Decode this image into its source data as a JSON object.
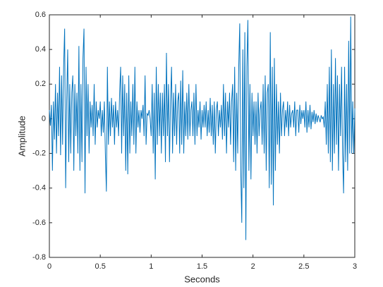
{
  "chart_data": {
    "type": "line",
    "xlabel": "Seconds",
    "ylabel": "Amplitude",
    "xlim": [
      0,
      3
    ],
    "ylim": [
      -0.8,
      0.6
    ],
    "xticks": [
      0,
      0.5,
      1,
      1.5,
      2,
      2.5,
      3
    ],
    "yticks": [
      -0.8,
      -0.6,
      -0.4,
      -0.2,
      0,
      0.2,
      0.4,
      0.6
    ],
    "grid": false,
    "x": [
      0,
      0.01,
      0.02,
      0.03,
      0.04,
      0.05,
      0.06,
      0.07,
      0.08,
      0.09,
      0.1,
      0.11,
      0.12,
      0.13,
      0.14,
      0.15,
      0.16,
      0.17,
      0.18,
      0.19,
      0.2,
      0.21,
      0.22,
      0.23,
      0.24,
      0.25,
      0.26,
      0.27,
      0.28,
      0.29,
      0.3,
      0.31,
      0.32,
      0.33,
      0.34,
      0.35,
      0.36,
      0.37,
      0.38,
      0.39,
      0.4,
      0.41,
      0.42,
      0.43,
      0.44,
      0.45,
      0.46,
      0.47,
      0.48,
      0.49,
      0.5,
      0.51,
      0.52,
      0.53,
      0.54,
      0.55,
      0.56,
      0.57,
      0.58,
      0.59,
      0.6,
      0.61,
      0.62,
      0.63,
      0.64,
      0.65,
      0.66,
      0.67,
      0.68,
      0.69,
      0.7,
      0.71,
      0.72,
      0.73,
      0.74,
      0.75,
      0.76,
      0.77,
      0.78,
      0.79,
      0.8,
      0.81,
      0.82,
      0.83,
      0.84,
      0.85,
      0.86,
      0.87,
      0.88,
      0.89,
      0.9,
      0.91,
      0.92,
      0.93,
      0.94,
      0.95,
      0.96,
      0.97,
      0.98,
      0.99,
      1,
      1.01,
      1.02,
      1.03,
      1.04,
      1.05,
      1.06,
      1.07,
      1.08,
      1.09,
      1.1,
      1.11,
      1.12,
      1.13,
      1.14,
      1.15,
      1.16,
      1.17,
      1.18,
      1.19,
      1.2,
      1.21,
      1.22,
      1.23,
      1.24,
      1.25,
      1.26,
      1.27,
      1.28,
      1.29,
      1.3,
      1.31,
      1.32,
      1.33,
      1.34,
      1.35,
      1.36,
      1.37,
      1.38,
      1.39,
      1.4,
      1.41,
      1.42,
      1.43,
      1.44,
      1.45,
      1.46,
      1.47,
      1.48,
      1.49,
      1.5,
      1.51,
      1.52,
      1.53,
      1.54,
      1.55,
      1.56,
      1.57,
      1.58,
      1.59,
      1.6,
      1.61,
      1.62,
      1.63,
      1.64,
      1.65,
      1.66,
      1.67,
      1.68,
      1.69,
      1.7,
      1.71,
      1.72,
      1.73,
      1.74,
      1.75,
      1.76,
      1.77,
      1.78,
      1.79,
      1.8,
      1.81,
      1.82,
      1.83,
      1.84,
      1.85,
      1.86,
      1.87,
      1.88,
      1.89,
      1.9,
      1.91,
      1.92,
      1.93,
      1.94,
      1.95,
      1.96,
      1.97,
      1.98,
      1.99,
      2,
      2.01,
      2.02,
      2.03,
      2.04,
      2.05,
      2.06,
      2.07,
      2.08,
      2.09,
      2.1,
      2.11,
      2.12,
      2.13,
      2.14,
      2.15,
      2.16,
      2.17,
      2.18,
      2.19,
      2.2,
      2.21,
      2.22,
      2.23,
      2.24,
      2.25,
      2.26,
      2.27,
      2.28,
      2.29,
      2.3,
      2.31,
      2.32,
      2.33,
      2.34,
      2.35,
      2.36,
      2.37,
      2.38,
      2.39,
      2.4,
      2.41,
      2.42,
      2.43,
      2.44,
      2.45,
      2.46,
      2.47,
      2.48,
      2.49,
      2.5,
      2.51,
      2.52,
      2.53,
      2.54,
      2.55,
      2.56,
      2.57,
      2.58,
      2.59,
      2.6,
      2.61,
      2.62,
      2.63,
      2.64,
      2.65,
      2.66,
      2.67,
      2.68,
      2.69,
      2.7,
      2.71,
      2.72,
      2.73,
      2.74,
      2.75,
      2.76,
      2.77,
      2.78,
      2.79,
      2.8,
      2.81,
      2.82,
      2.83,
      2.84,
      2.85,
      2.86,
      2.87,
      2.88,
      2.89,
      2.9,
      2.91,
      2.92,
      2.93,
      2.94,
      2.95,
      2.96,
      2.97,
      2.98,
      2.99,
      3
    ],
    "series": [
      {
        "color": "#0072bd",
        "values": [
          0.05,
          -0.04,
          0.08,
          -0.3,
          0.1,
          -0.12,
          0.2,
          -0.2,
          0.15,
          -0.1,
          0.3,
          -0.21,
          0.25,
          -0.15,
          0.3,
          0.52,
          -0.4,
          0.1,
          0.4,
          -0.25,
          0.2,
          -0.2,
          0.15,
          0.25,
          -0.3,
          0.2,
          -0.1,
          0.15,
          -0.2,
          0.42,
          -0.3,
          0.2,
          -0.25,
          0.35,
          0.52,
          -0.43,
          0.3,
          -0.1,
          0.2,
          -0.2,
          0.1,
          -0.05,
          0.08,
          -0.1,
          0.2,
          -0.15,
          0.1,
          -0.05,
          0.05,
          0,
          0.1,
          -0.1,
          0.05,
          -0.08,
          0.1,
          -0.2,
          -0.42,
          0.3,
          -0.15,
          0.1,
          -0.1,
          0.12,
          -0.05,
          0.08,
          -0.15,
          0.1,
          -0.05,
          0.05,
          -0.1,
          0.15,
          0.3,
          -0.2,
          0.25,
          -0.1,
          0.2,
          -0.3,
          0.15,
          -0.32,
          0.25,
          -0.2,
          0.1,
          -0.1,
          0.2,
          -0.15,
          0.3,
          -0.2,
          0.1,
          -0.05,
          0.05,
          -0.08,
          0.05,
          0,
          0.08,
          -0.1,
          0.25,
          -0.15,
          0.03,
          0.02,
          0.05,
          0,
          -0.1,
          0.2,
          -0.2,
          0.15,
          -0.35,
          0.3,
          -0.15,
          0.2,
          -0.1,
          0.15,
          -0.2,
          0.15,
          -0.1,
          0.2,
          -0.25,
          0.38,
          -0.1,
          0.2,
          -0.25,
          0.1,
          0.3,
          -0.2,
          0.15,
          -0.1,
          0.2,
          -0.15,
          0.1,
          0.15,
          -0.2,
          0.22,
          -0.15,
          0.28,
          -0.2,
          0.1,
          -0.1,
          0.15,
          -0.12,
          0.2,
          -0.1,
          0.05,
          0.1,
          -0.1,
          0.15,
          -0.15,
          0.2,
          -0.1,
          0.05,
          -0.05,
          0.1,
          -0.12,
          0.05,
          -0.05,
          0.08,
          -0.05,
          0.1,
          -0.1,
          0.05,
          -0.08,
          0.12,
          -0.1,
          0.08,
          -0.15,
          0.1,
          -0.2,
          0.05,
          0.1,
          -0.1,
          0.05,
          -0.05,
          0.08,
          -0.12,
          0.2,
          -0.1,
          0.15,
          -0.2,
          0.1,
          -0.05,
          0.15,
          -0.15,
          0.1,
          0.2,
          -0.25,
          0.3,
          -0.3,
          0.15,
          -0.2,
          0.3,
          0.55,
          -0.3,
          -0.6,
          0.4,
          -0.4,
          0.5,
          -0.7,
          0.3,
          0.57,
          -0.3,
          0.2,
          -0.35,
          0.15,
          -0.1,
          0.1,
          -0.15,
          0.1,
          -0.2,
          0.15,
          -0.1,
          0.05,
          0.1,
          -0.15,
          0.2,
          -0.2,
          0.25,
          -0.3,
          0.15,
          0.2,
          -0.4,
          0.5,
          -0.38,
          0.3,
          -0.5,
          0.35,
          -0.3,
          0.2,
          -0.15,
          0.1,
          -0.2,
          0.15,
          -0.1,
          0.05,
          0.1,
          -0.1,
          0.05,
          -0.05,
          0.1,
          -0.1,
          0.08,
          -0.05,
          0.03,
          0.05,
          -0.05,
          0.1,
          -0.1,
          0.05,
          0.05,
          -0.08,
          0.08,
          -0.03,
          0.05,
          0,
          0.05,
          -0.05,
          0.1,
          -0.08,
          0.05,
          -0.05,
          0.08,
          -0.06,
          0.04,
          -0.02,
          0.05,
          -0.03,
          0.03,
          -0.02,
          0.02,
          0,
          -0.02,
          0.02,
          0,
          0.01,
          -0.05,
          0.1,
          -0.15,
          0.2,
          -0.2,
          0.3,
          -0.25,
          0.4,
          -0.3,
          0.2,
          -0.2,
          0.35,
          -0.15,
          0.25,
          -0.3,
          0.2,
          -0.1,
          0.3,
          -0.2,
          -0.43,
          0.3,
          -0.25,
          0.2,
          -0.3,
          0.45,
          -0.2,
          0.59,
          -0.2,
          0.1,
          -0.2,
          0.06
        ]
      }
    ]
  }
}
